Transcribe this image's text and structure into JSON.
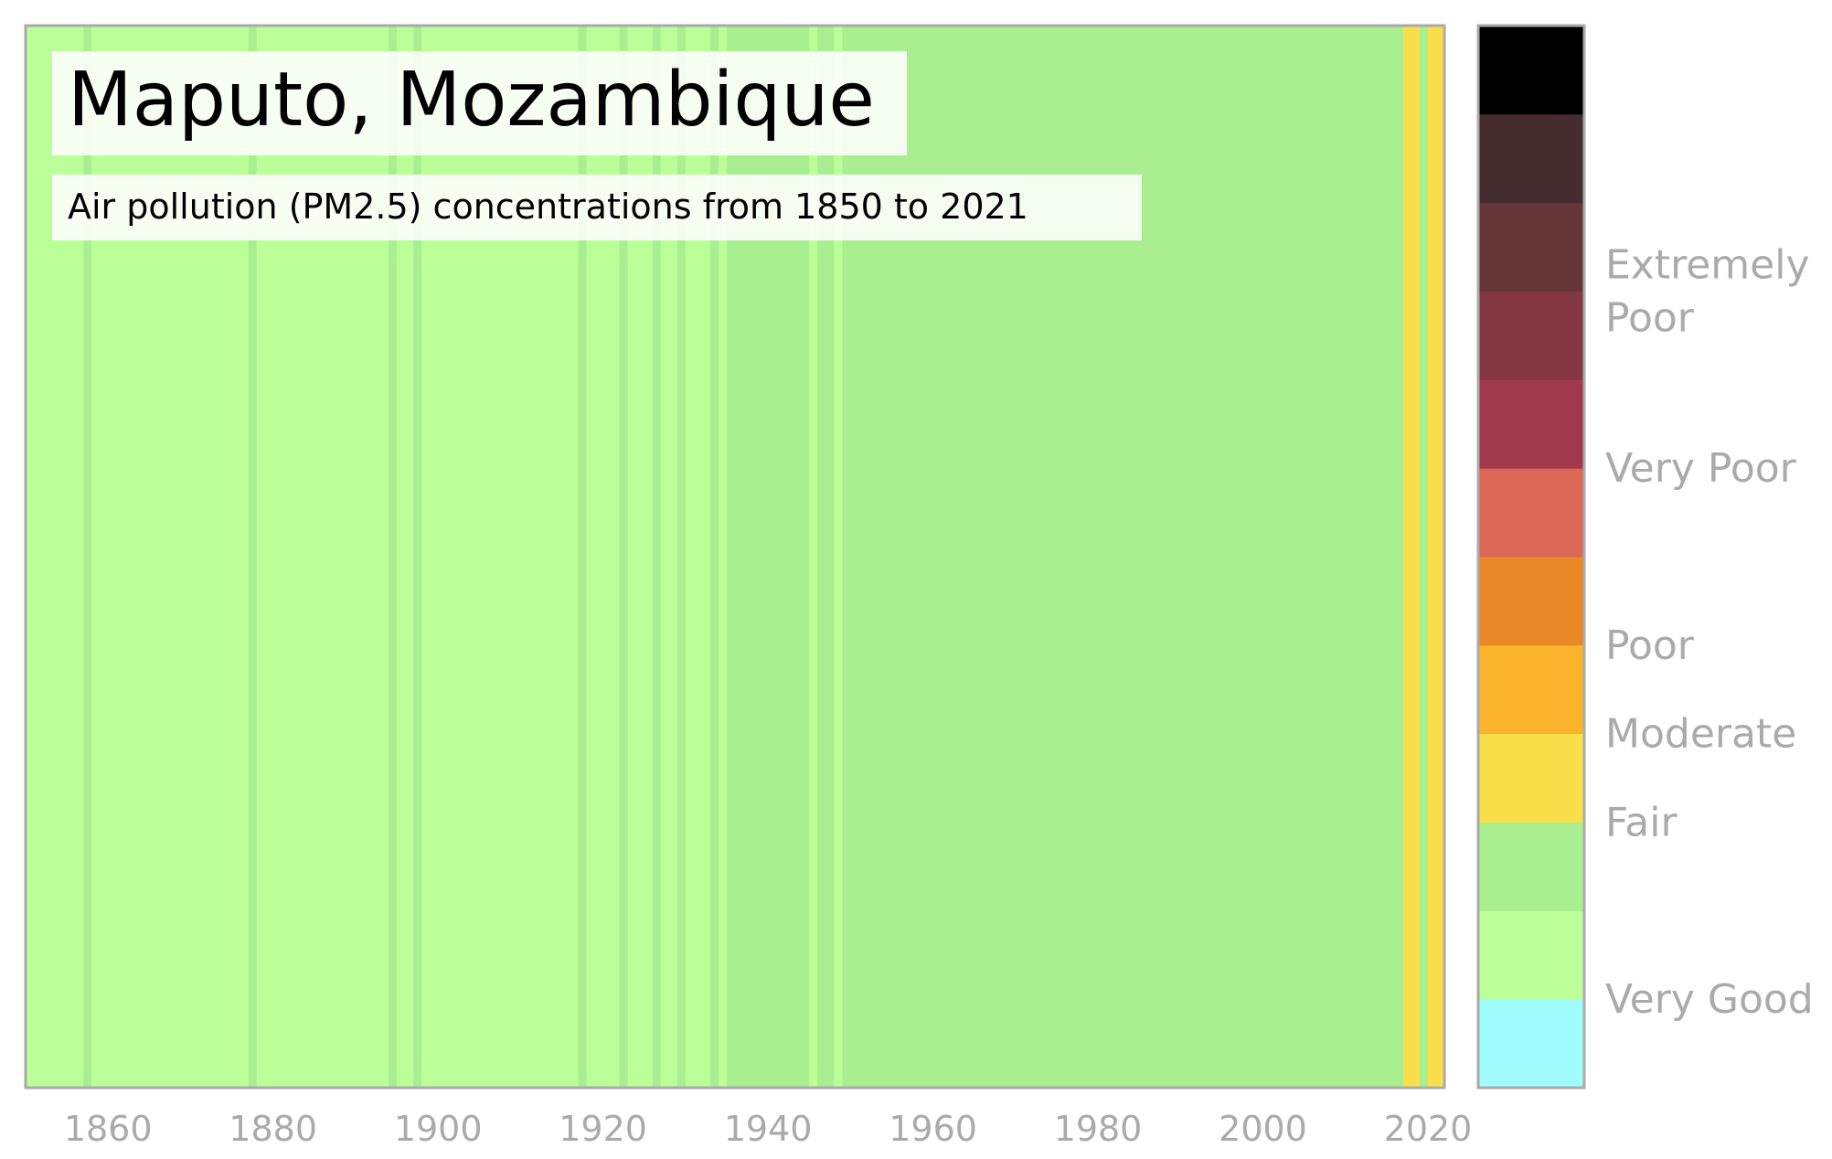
{
  "chart_data": {
    "type": "heatmap",
    "title": "Maputo, Mozambique",
    "subtitle": "Air pollution (PM2.5) concentrations from 1850 to 2021",
    "xlim": [
      1850,
      2022
    ],
    "x_ticks": [
      1860,
      1880,
      1900,
      1920,
      1940,
      1960,
      1980,
      2000,
      2020
    ],
    "colors": {
      "very_good_light": "#bbff99",
      "very_good_dark": "#a9ef8f",
      "fair": "#f9e04a",
      "border": "#aaaaaa"
    },
    "stripes": [
      {
        "start": 1850,
        "end": 1857,
        "level": "very_good_light"
      },
      {
        "start": 1857,
        "end": 1858,
        "level": "very_good_dark"
      },
      {
        "start": 1858,
        "end": 1877,
        "level": "very_good_light"
      },
      {
        "start": 1877,
        "end": 1878,
        "level": "very_good_dark"
      },
      {
        "start": 1878,
        "end": 1894,
        "level": "very_good_light"
      },
      {
        "start": 1894,
        "end": 1895,
        "level": "very_good_dark"
      },
      {
        "start": 1895,
        "end": 1897,
        "level": "very_good_light"
      },
      {
        "start": 1897,
        "end": 1898,
        "level": "very_good_dark"
      },
      {
        "start": 1898,
        "end": 1917,
        "level": "very_good_light"
      },
      {
        "start": 1917,
        "end": 1918,
        "level": "very_good_dark"
      },
      {
        "start": 1918,
        "end": 1922,
        "level": "very_good_light"
      },
      {
        "start": 1922,
        "end": 1923,
        "level": "very_good_dark"
      },
      {
        "start": 1923,
        "end": 1926,
        "level": "very_good_light"
      },
      {
        "start": 1926,
        "end": 1927,
        "level": "very_good_dark"
      },
      {
        "start": 1927,
        "end": 1929,
        "level": "very_good_light"
      },
      {
        "start": 1929,
        "end": 1930,
        "level": "very_good_dark"
      },
      {
        "start": 1930,
        "end": 1933,
        "level": "very_good_light"
      },
      {
        "start": 1933,
        "end": 1934,
        "level": "very_good_dark"
      },
      {
        "start": 1934,
        "end": 1935,
        "level": "very_good_light"
      },
      {
        "start": 1935,
        "end": 1945,
        "level": "very_good_dark"
      },
      {
        "start": 1945,
        "end": 1946,
        "level": "very_good_light"
      },
      {
        "start": 1946,
        "end": 1948,
        "level": "very_good_dark"
      },
      {
        "start": 1948,
        "end": 1949,
        "level": "very_good_light"
      },
      {
        "start": 1949,
        "end": 2017,
        "level": "very_good_dark"
      },
      {
        "start": 2017,
        "end": 2019,
        "level": "fair"
      },
      {
        "start": 2019,
        "end": 2020,
        "level": "very_good_dark"
      },
      {
        "start": 2020,
        "end": 2022,
        "level": "fair"
      }
    ],
    "colorbar": {
      "segments": [
        "#a1fdfd",
        "#bbff99",
        "#a9ef8f",
        "#f9e04a",
        "#fcb42d",
        "#e98826",
        "#dc6858",
        "#a1394c",
        "#843843",
        "#663538",
        "#452d2f",
        "#000000"
      ],
      "labels": [
        {
          "text": "Very Good",
          "lines": [
            "Very Good"
          ],
          "seg": 1.0
        },
        {
          "text": "Fair",
          "lines": [
            "Fair"
          ],
          "seg": 3.0
        },
        {
          "text": "Moderate",
          "lines": [
            "Moderate"
          ],
          "seg": 4.0
        },
        {
          "text": "Poor",
          "lines": [
            "Poor"
          ],
          "seg": 5.0
        },
        {
          "text": "Very Poor",
          "lines": [
            "Very Poor"
          ],
          "seg": 7.0
        },
        {
          "text": "Extremely Poor",
          "lines": [
            "Extremely",
            "Poor"
          ],
          "seg": 9.0
        }
      ]
    }
  }
}
